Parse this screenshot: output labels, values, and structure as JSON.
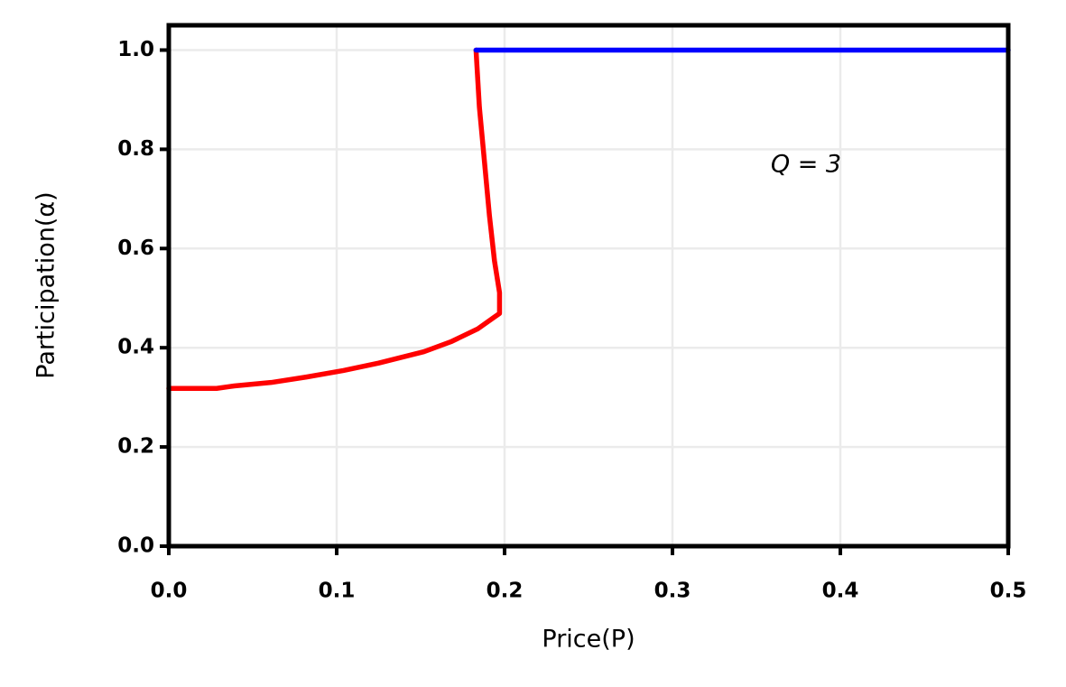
{
  "chart_data": {
    "type": "line",
    "xlabel": "Price(P)",
    "ylabel": "Participation(α)",
    "annotation": "Q = 3",
    "xlim": [
      0,
      0.5
    ],
    "ylim": [
      0,
      1.05
    ],
    "xticks": [
      {
        "value": 0,
        "label": "0.0"
      },
      0.1,
      0.2,
      0.3,
      0.4,
      {
        "value": 0.5,
        "label": "0.5"
      }
    ],
    "yticks": [
      {
        "value": 0,
        "label": "0.0"
      },
      0.2,
      0.4,
      0.6,
      0.8,
      {
        "value": 1,
        "label": "1.0"
      }
    ],
    "grid": true,
    "series": [
      {
        "color": "#ff0000",
        "x": [
          0,
          0.0285,
          0.039,
          0.061,
          0.082,
          0.104,
          0.125,
          0.152,
          0.168,
          0.184,
          0.194,
          0.197,
          0.197,
          0.194,
          0.191,
          0.188,
          0.185,
          0.183
        ],
        "values": [
          0.318,
          0.318,
          0.323,
          0.33,
          0.341,
          0.354,
          0.369,
          0.392,
          0.412,
          0.438,
          0.462,
          0.469,
          0.511,
          0.575,
          0.666,
          0.776,
          0.885,
          1.0
        ]
      },
      {
        "color": "#0000ff",
        "x": [
          0.183,
          0.5
        ],
        "values": [
          1.0,
          1.0
        ]
      }
    ]
  }
}
